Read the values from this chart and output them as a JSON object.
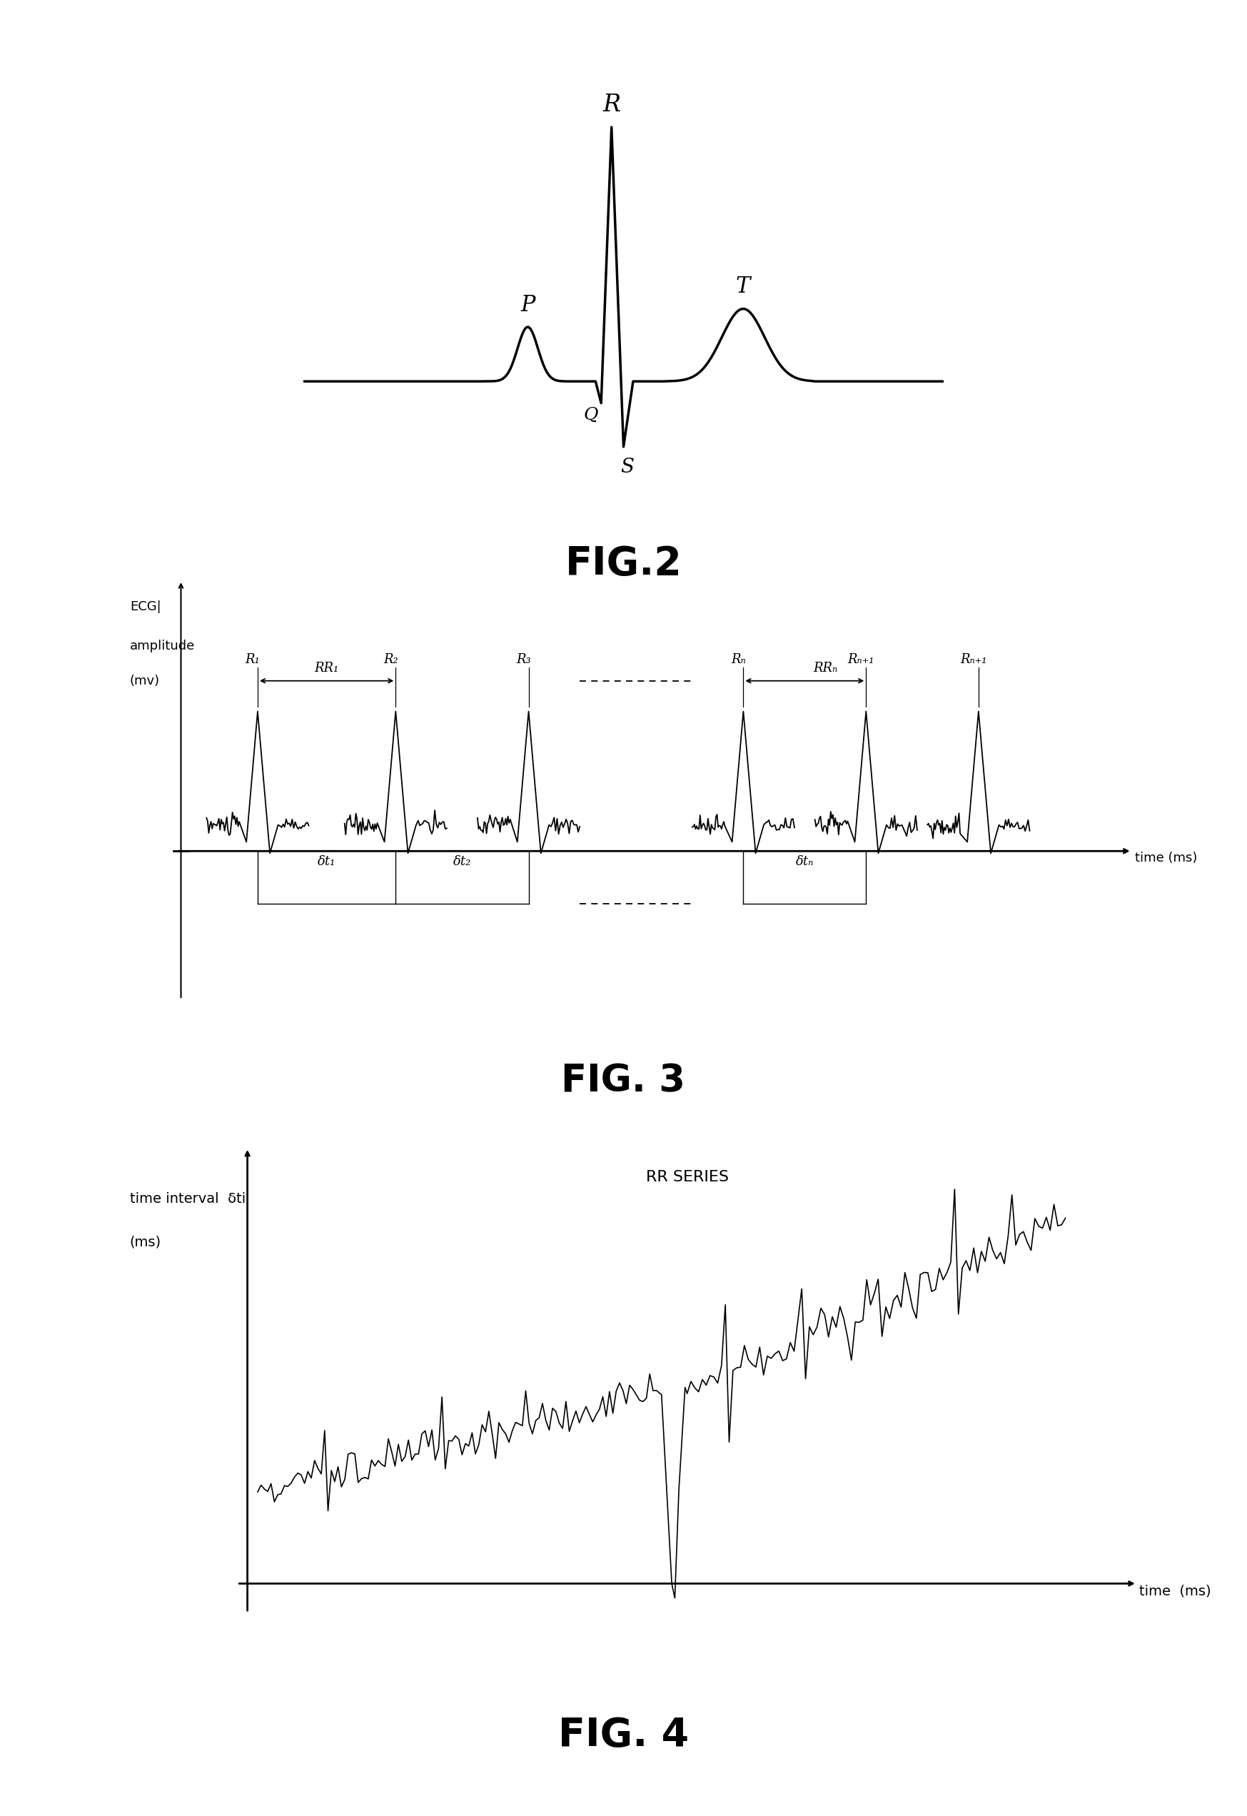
{
  "fig2_label": "FIG.2",
  "fig3_label": "FIG. 3",
  "fig4_label": "FIG. 4",
  "bg_color": "#ffffff",
  "line_color": "#000000",
  "rr_series_label": "RR SERIES"
}
